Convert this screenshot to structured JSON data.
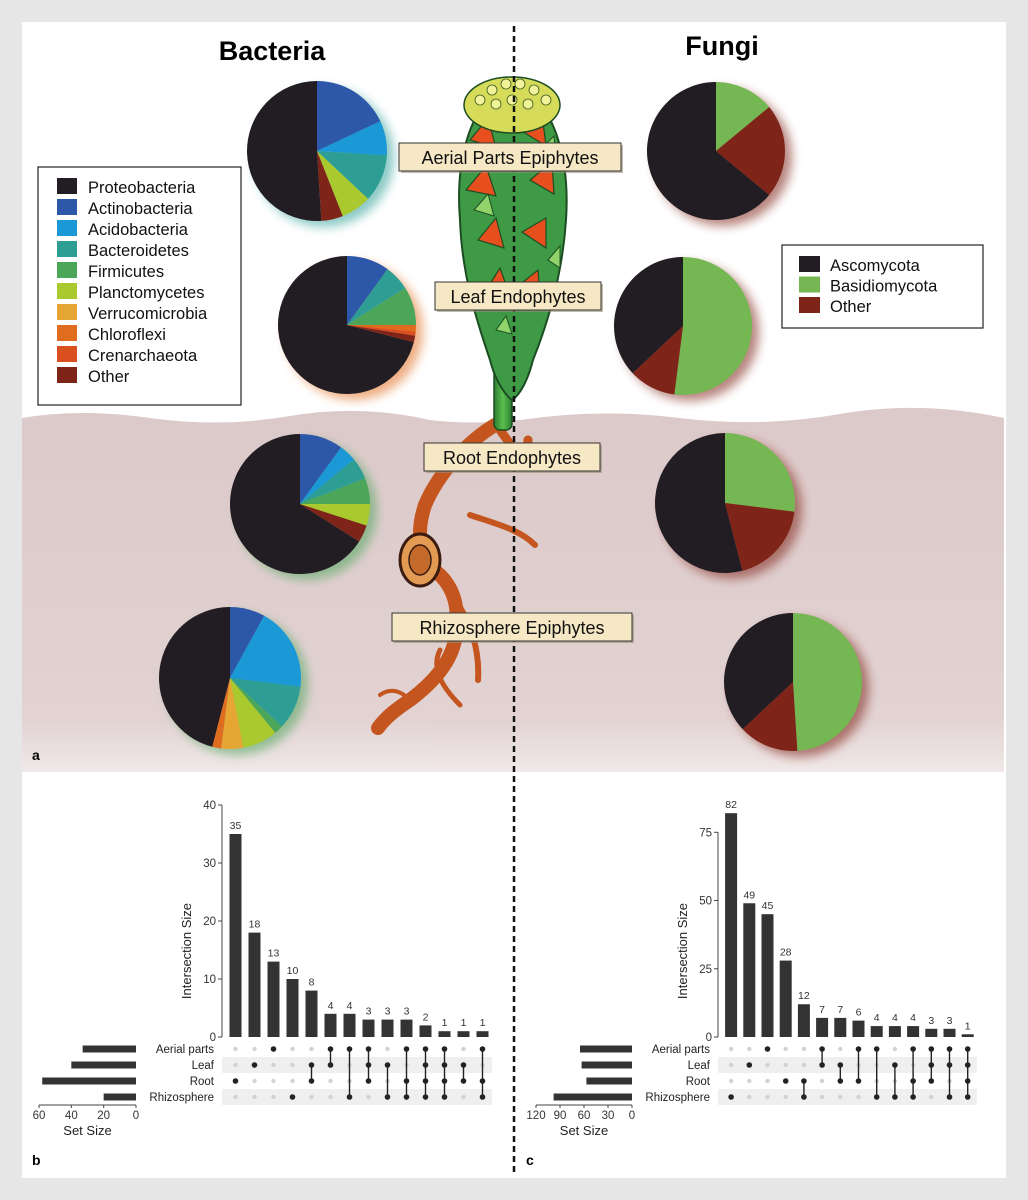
{
  "headers": {
    "left": "Bacteria",
    "right": "Fungi"
  },
  "panel_labels": {
    "a": "a",
    "b": "b",
    "c": "c"
  },
  "compartments": [
    "Aerial Parts Epiphytes",
    "Leaf Endophytes",
    "Root Endophytes",
    "Rhizosphere Epiphytes"
  ],
  "colors": {
    "Proteobacteria": "#221d23",
    "Actinobacteria": "#2d57a8",
    "Acidobacteria": "#1b99d6",
    "Bacteroidetes": "#2e9e95",
    "Firmicutes": "#4ca65a",
    "Planctomycetes": "#a9c92e",
    "Verrucomicrobia": "#e6a633",
    "Chloroflexi": "#e06c1f",
    "Crenarchaeota": "#d9501e",
    "Other": "#7e2418",
    "Ascomycota": "#221d23",
    "Basidiomycota": "#75b752",
    "FungiOther": "#7e2418",
    "bar": "#333333",
    "soil": "#dcc9c9"
  },
  "bacteria_legend": [
    "Proteobacteria",
    "Actinobacteria",
    "Acidobacteria",
    "Bacteroidetes",
    "Firmicutes",
    "Planctomycetes",
    "Verrucomicrobia",
    "Chloroflexi",
    "Crenarchaeota",
    "Other"
  ],
  "fungi_legend": [
    "Ascomycota",
    "Basidiomycota",
    "Other"
  ],
  "chart_data": [
    {
      "type": "pie",
      "group": "Bacteria",
      "compartment": "Aerial Parts Epiphytes",
      "slices": [
        {
          "label": "Proteobacteria",
          "value": 51
        },
        {
          "label": "Actinobacteria",
          "value": 18
        },
        {
          "label": "Acidobacteria",
          "value": 8
        },
        {
          "label": "Bacteroidetes",
          "value": 11
        },
        {
          "label": "Planctomycetes",
          "value": 7
        },
        {
          "label": "Other",
          "value": 5
        }
      ]
    },
    {
      "type": "pie",
      "group": "Bacteria",
      "compartment": "Leaf Endophytes",
      "slices": [
        {
          "label": "Proteobacteria",
          "value": 71
        },
        {
          "label": "Actinobacteria",
          "value": 10
        },
        {
          "label": "Bacteroidetes",
          "value": 6
        },
        {
          "label": "Firmicutes",
          "value": 9
        },
        {
          "label": "Chloroflexi",
          "value": 1.5
        },
        {
          "label": "Crenarchaeota",
          "value": 1
        },
        {
          "label": "Other",
          "value": 1.5
        }
      ]
    },
    {
      "type": "pie",
      "group": "Bacteria",
      "compartment": "Root Endophytes",
      "slices": [
        {
          "label": "Proteobacteria",
          "value": 66
        },
        {
          "label": "Actinobacteria",
          "value": 10
        },
        {
          "label": "Acidobacteria",
          "value": 4
        },
        {
          "label": "Bacteroidetes",
          "value": 5
        },
        {
          "label": "Firmicutes",
          "value": 6
        },
        {
          "label": "Planctomycetes",
          "value": 5
        },
        {
          "label": "Other",
          "value": 4
        }
      ]
    },
    {
      "type": "pie",
      "group": "Bacteria",
      "compartment": "Rhizosphere Epiphytes",
      "slices": [
        {
          "label": "Proteobacteria",
          "value": 46
        },
        {
          "label": "Actinobacteria",
          "value": 8
        },
        {
          "label": "Acidobacteria",
          "value": 19
        },
        {
          "label": "Bacteroidetes",
          "value": 10
        },
        {
          "label": "Firmicutes",
          "value": 2
        },
        {
          "label": "Planctomycetes",
          "value": 8
        },
        {
          "label": "Verrucomicrobia",
          "value": 5
        },
        {
          "label": "Chloroflexi",
          "value": 2
        }
      ]
    },
    {
      "type": "pie",
      "group": "Fungi",
      "compartment": "Aerial Parts Epiphytes",
      "slices": [
        {
          "label": "Ascomycota",
          "value": 64
        },
        {
          "label": "Basidiomycota",
          "value": 14
        },
        {
          "label": "Other",
          "value": 22
        }
      ]
    },
    {
      "type": "pie",
      "group": "Fungi",
      "compartment": "Leaf Endophytes",
      "slices": [
        {
          "label": "Ascomycota",
          "value": 37
        },
        {
          "label": "Basidiomycota",
          "value": 52
        },
        {
          "label": "Other",
          "value": 11
        }
      ]
    },
    {
      "type": "pie",
      "group": "Fungi",
      "compartment": "Root Endophytes",
      "slices": [
        {
          "label": "Ascomycota",
          "value": 54
        },
        {
          "label": "Basidiomycota",
          "value": 27
        },
        {
          "label": "Other",
          "value": 19
        }
      ]
    },
    {
      "type": "pie",
      "group": "Fungi",
      "compartment": "Rhizosphere Epiphytes",
      "slices": [
        {
          "label": "Ascomycota",
          "value": 37
        },
        {
          "label": "Basidiomycota",
          "value": 49
        },
        {
          "label": "Other",
          "value": 14
        }
      ]
    },
    {
      "type": "bar",
      "group": "Bacteria",
      "panel": "b",
      "ylabel": "Intersection Size",
      "ylim": [
        0,
        40
      ],
      "yticks": [
        0,
        10,
        20,
        30,
        40
      ],
      "values": [
        35,
        18,
        13,
        10,
        8,
        4,
        4,
        3,
        3,
        3,
        2,
        1,
        1,
        1
      ],
      "sets": [
        "Aerial parts",
        "Leaf",
        "Root",
        "Rhizosphere"
      ],
      "set_sizes": [
        33,
        40,
        58,
        20
      ],
      "set_size_label": "Set Size",
      "set_size_ticks": [
        60,
        40,
        20,
        0
      ],
      "set_size_max": 60,
      "memberships": [
        [
          2
        ],
        [
          1
        ],
        [
          0
        ],
        [
          3
        ],
        [
          1,
          2
        ],
        [
          0,
          1
        ],
        [
          0,
          3
        ],
        [
          0,
          1,
          2
        ],
        [
          1,
          3
        ],
        [
          0,
          2,
          3
        ],
        [
          0,
          1,
          2,
          3
        ],
        [
          0,
          1,
          2,
          3
        ],
        [
          1,
          2
        ],
        [
          0,
          2,
          3
        ]
      ]
    },
    {
      "type": "bar",
      "group": "Fungi",
      "panel": "c",
      "ylabel": "Intersection Size",
      "ylim": [
        0,
        85
      ],
      "yticks": [
        0,
        25,
        50,
        75
      ],
      "values": [
        82,
        49,
        45,
        28,
        12,
        7,
        7,
        6,
        4,
        4,
        4,
        3,
        3,
        1
      ],
      "sets": [
        "Aerial parts",
        "Leaf",
        "Root",
        "Rhizosphere"
      ],
      "set_sizes": [
        65,
        63,
        57,
        98
      ],
      "set_size_label": "Set Size",
      "set_size_ticks": [
        120,
        90,
        60,
        30,
        0
      ],
      "set_size_max": 120,
      "memberships": [
        [
          3
        ],
        [
          1
        ],
        [
          0
        ],
        [
          2
        ],
        [
          3,
          2
        ],
        [
          0,
          1
        ],
        [
          1,
          2
        ],
        [
          0,
          2
        ],
        [
          0,
          3
        ],
        [
          1,
          3
        ],
        [
          0,
          2,
          3
        ],
        [
          0,
          1,
          2
        ],
        [
          0,
          1,
          3
        ],
        [
          0,
          1,
          2,
          3
        ]
      ]
    }
  ]
}
